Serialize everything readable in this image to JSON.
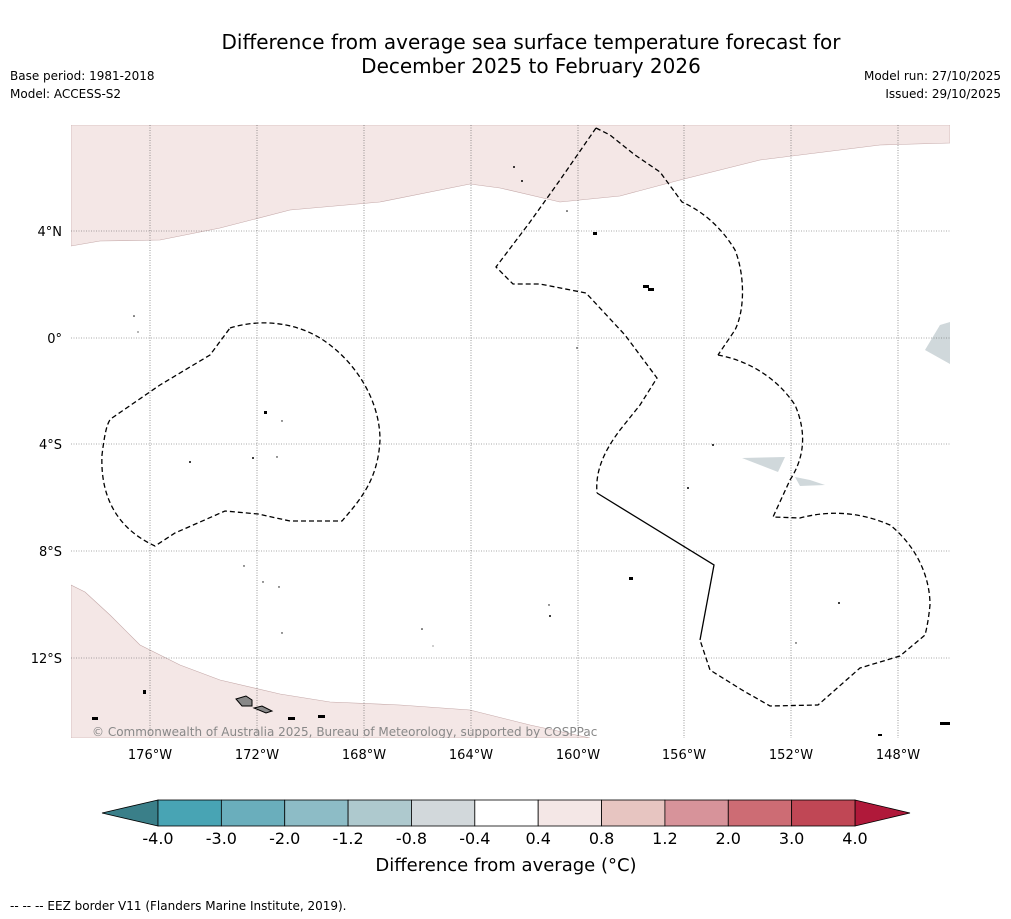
{
  "header": {
    "title_line1": "Difference from average sea surface temperature forecast for",
    "title_line2": "December 2025 to February 2026",
    "base_period": "Base period: 1981-2018",
    "model": "Model: ACCESS-S2",
    "model_run": "Model run: 27/10/2025",
    "issued": "Issued: 29/10/2025"
  },
  "map": {
    "lat_labels": [
      "4°N",
      "0°",
      "4°S",
      "8°S",
      "12°S"
    ],
    "lon_labels": [
      "176°W",
      "172°W",
      "168°W",
      "164°W",
      "160°W",
      "156°W",
      "152°W",
      "148°W"
    ],
    "copyright": "© Commonwealth of Australia 2025, Bureau of Meteorology, supported by COSPPac",
    "warm_color": "#f4e7e6",
    "cool_color": "#d0d8db"
  },
  "colorbar": {
    "ticks": [
      "-4.0",
      "-3.0",
      "-2.0",
      "-1.2",
      "-0.8",
      "-0.4",
      "0.4",
      "0.8",
      "1.2",
      "2.0",
      "3.0",
      "4.0"
    ],
    "colors": [
      "#48a4b4",
      "#6aaebc",
      "#8dbcc6",
      "#aec9ce",
      "#d2d8db",
      "#ffffff",
      "#f4e7e6",
      "#e7c5c1",
      "#d7939a",
      "#cd6c74",
      "#c04755"
    ],
    "low_extend_color": "#3a7f89",
    "high_extend_color": "#b0193a",
    "label": "Difference from average (°C)"
  },
  "footnote": "--  --  -- EEZ border V11 (Flanders Marine Institute, 2019)."
}
